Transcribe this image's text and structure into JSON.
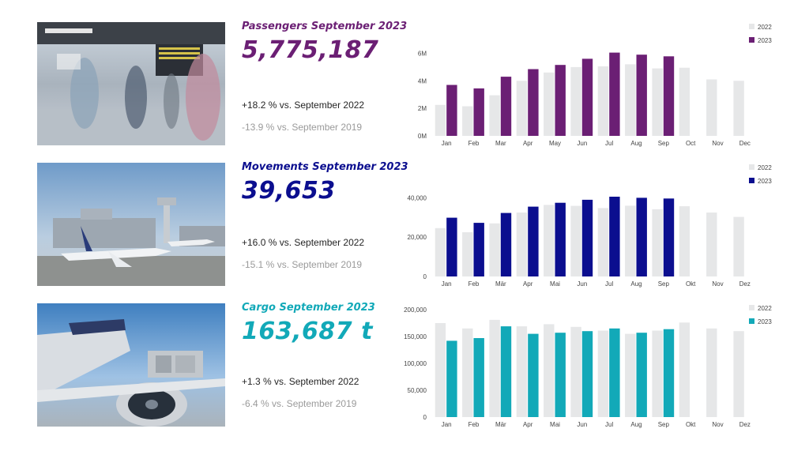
{
  "colors": {
    "purple": "#6b1f74",
    "navy": "#0b0e8f",
    "teal": "#12a9b8",
    "gray_bar": "#e6e7e8",
    "muted_text": "#9a9a9a"
  },
  "panels": [
    {
      "id": "passengers",
      "photo": "airport-terminal-crowd-photo",
      "title": "Passengers September 2023",
      "value": "5,775,187",
      "line1": "+18.2 % vs. September 2022",
      "line2": "-13.9 % vs. September 2019",
      "color": "#6b1f74"
    },
    {
      "id": "movements",
      "photo": "airport-apron-aircraft-photo",
      "title": "Movements September 2023",
      "value": "39,653",
      "line1": "+16.0 % vs. September 2022",
      "line2": "-15.1 % vs. September 2019",
      "color": "#0b0e8f"
    },
    {
      "id": "cargo",
      "photo": "cargo-aircraft-loading-photo",
      "title": "Cargo September 2023",
      "value": "163,687 t",
      "line1": "+1.3 % vs. September 2022",
      "line2": "-6.4 % vs. September 2019",
      "color": "#12a9b8"
    }
  ],
  "chart_data": [
    {
      "type": "bar",
      "categories": [
        "Jan",
        "Feb",
        "Mar",
        "Apr",
        "May",
        "Jun",
        "Jul",
        "Aug",
        "Sep",
        "Oct",
        "Nov",
        "Dec"
      ],
      "series": [
        {
          "name": "2022",
          "color": "#e6e7e8",
          "values": [
            2.25,
            2.15,
            2.95,
            4.0,
            4.6,
            5.0,
            5.05,
            5.2,
            4.9,
            4.95,
            4.1,
            4.0
          ]
        },
        {
          "name": "2023",
          "color": "#6b1f74",
          "values": [
            3.7,
            3.45,
            4.3,
            4.85,
            5.15,
            5.6,
            6.05,
            5.9,
            5.78,
            null,
            null,
            null
          ]
        }
      ],
      "yticks": [
        "0M",
        "2M",
        "4M",
        "6M"
      ],
      "ylim": [
        0,
        7.0
      ],
      "legend": "top-right",
      "grid": false
    },
    {
      "type": "bar",
      "categories": [
        "Jan",
        "Feb",
        "Mär",
        "Apr",
        "Mai",
        "Jun",
        "Jul",
        "Aug",
        "Sep",
        "Okt",
        "Nov",
        "Dez"
      ],
      "series": [
        {
          "name": "2022",
          "color": "#e6e7e8",
          "values": [
            24600,
            22500,
            27000,
            32500,
            36400,
            35900,
            34800,
            36000,
            34200,
            35700,
            32500,
            30300
          ]
        },
        {
          "name": "2023",
          "color": "#0b0e8f",
          "values": [
            29900,
            27300,
            32300,
            35500,
            37500,
            39000,
            40600,
            40000,
            39653,
            null,
            null,
            null
          ]
        }
      ],
      "yticks": [
        "0",
        "20,000",
        "40,000"
      ],
      "ylim": [
        0,
        45000
      ],
      "legend": "top-right",
      "grid": false
    },
    {
      "type": "bar",
      "categories": [
        "Jan",
        "Feb",
        "Mär",
        "Apr",
        "Mai",
        "Jun",
        "Jul",
        "Aug",
        "Sep",
        "Okt",
        "Nov",
        "Dez"
      ],
      "series": [
        {
          "name": "2022",
          "color": "#e6e7e8",
          "values": [
            175000,
            165000,
            181000,
            169000,
            173000,
            168000,
            161000,
            155000,
            161000,
            176000,
            165000,
            160000
          ]
        },
        {
          "name": "2023",
          "color": "#12a9b8",
          "values": [
            142000,
            147000,
            169000,
            155000,
            157000,
            160000,
            165000,
            157000,
            163687,
            null,
            null,
            null
          ]
        }
      ],
      "yticks": [
        "0",
        "50,000",
        "100,000",
        "150,000",
        "200,000"
      ],
      "ylim": [
        0,
        200000
      ],
      "legend": "top-right",
      "grid": false
    }
  ]
}
